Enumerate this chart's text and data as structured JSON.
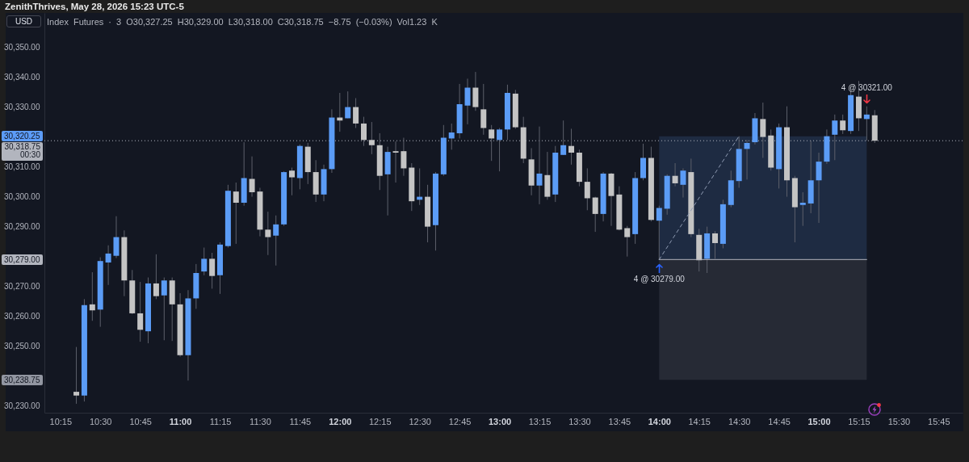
{
  "chart_data": {
    "type": "candlestick",
    "title": "ZenithThrives, May 28, 2026 15:23 UTC-5",
    "subtitle": "Index Futures · 3 O30,327.25 H30,329.00 L30,318.00 C30,318.75 −8.75 (−0.03%) Vol1.23 K",
    "ylabel": "USD",
    "x": [
      "2026-05-28T10:21",
      "2026-05-28T10:24",
      "2026-05-28T10:27",
      "2026-05-28T10:30",
      "2026-05-28T10:33",
      "2026-05-28T10:36",
      "2026-05-28T10:39",
      "2026-05-28T10:42",
      "2026-05-28T10:45",
      "2026-05-28T10:48",
      "2026-05-28T10:51",
      "2026-05-28T10:54",
      "2026-05-28T10:57",
      "2026-05-28T11:00",
      "2026-05-28T11:03",
      "2026-05-28T11:06",
      "2026-05-28T11:09",
      "2026-05-28T11:12",
      "2026-05-28T11:15",
      "2026-05-28T11:18",
      "2026-05-28T11:21",
      "2026-05-28T11:24",
      "2026-05-28T11:27",
      "2026-05-28T11:30",
      "2026-05-28T11:33",
      "2026-05-28T11:36",
      "2026-05-28T11:39",
      "2026-05-28T11:42",
      "2026-05-28T11:45",
      "2026-05-28T11:48",
      "2026-05-28T11:51",
      "2026-05-28T11:54",
      "2026-05-28T11:57",
      "2026-05-28T12:00",
      "2026-05-28T12:03",
      "2026-05-28T12:06",
      "2026-05-28T12:09",
      "2026-05-28T12:12",
      "2026-05-28T12:15",
      "2026-05-28T12:18",
      "2026-05-28T12:21",
      "2026-05-28T12:24",
      "2026-05-28T12:27",
      "2026-05-28T12:30",
      "2026-05-28T12:33",
      "2026-05-28T12:36",
      "2026-05-28T12:39",
      "2026-05-28T12:42",
      "2026-05-28T12:45",
      "2026-05-28T12:48",
      "2026-05-28T12:51",
      "2026-05-28T12:54",
      "2026-05-28T12:57",
      "2026-05-28T13:00",
      "2026-05-28T13:03",
      "2026-05-28T13:06",
      "2026-05-28T13:09",
      "2026-05-28T13:12",
      "2026-05-28T13:15",
      "2026-05-28T13:18",
      "2026-05-28T13:21",
      "2026-05-28T13:24",
      "2026-05-28T13:27",
      "2026-05-28T13:30",
      "2026-05-28T13:33",
      "2026-05-28T13:36",
      "2026-05-28T13:39",
      "2026-05-28T13:42",
      "2026-05-28T13:45",
      "2026-05-28T13:48",
      "2026-05-28T13:51",
      "2026-05-28T13:54",
      "2026-05-28T13:57",
      "2026-05-28T14:00",
      "2026-05-28T14:03",
      "2026-05-28T14:06",
      "2026-05-28T14:09",
      "2026-05-28T14:12",
      "2026-05-28T14:15",
      "2026-05-28T14:18",
      "2026-05-28T14:21",
      "2026-05-28T14:24",
      "2026-05-28T14:27",
      "2026-05-28T14:30",
      "2026-05-28T14:33",
      "2026-05-28T14:36",
      "2026-05-28T14:39",
      "2026-05-28T14:42",
      "2026-05-28T14:45",
      "2026-05-28T14:48",
      "2026-05-28T14:51",
      "2026-05-28T14:54",
      "2026-05-28T14:57",
      "2026-05-28T15:00",
      "2026-05-28T15:03",
      "2026-05-28T15:06",
      "2026-05-28T15:09",
      "2026-05-28T15:12",
      "2026-05-28T15:15",
      "2026-05-28T15:18",
      "2026-05-28T15:21"
    ],
    "ohlc": [
      [
        30234.75,
        30249.75,
        30230.75,
        30233.5
      ],
      [
        30233.5,
        30265.75,
        30231.5,
        30263.75
      ],
      [
        30264,
        30274.75,
        30258.5,
        30262
      ],
      [
        30262.25,
        30279.75,
        30256.5,
        30278.5
      ],
      [
        30278,
        30283.75,
        30270.5,
        30281
      ],
      [
        30280.25,
        30293.5,
        30279.5,
        30286.5
      ],
      [
        30286.5,
        30288.75,
        30266.75,
        30272
      ],
      [
        30272,
        30275.5,
        30260.75,
        30261
      ],
      [
        30261,
        30271.5,
        30251.5,
        30255.5
      ],
      [
        30255,
        30273,
        30251,
        30271
      ],
      [
        30271,
        30280.75,
        30265.75,
        30266.75
      ],
      [
        30267,
        30273,
        30252,
        30272
      ],
      [
        30272,
        30273,
        30251.75,
        30264
      ],
      [
        30264,
        30267.75,
        30246.5,
        30247
      ],
      [
        30247,
        30268.75,
        30238.5,
        30266
      ],
      [
        30266,
        30277.5,
        30262.5,
        30274.5
      ],
      [
        30275,
        30283,
        30273.75,
        30279.25
      ],
      [
        30279.25,
        30281.25,
        30269.25,
        30273.5
      ],
      [
        30273.75,
        30284.75,
        30267.5,
        30284
      ],
      [
        30283.5,
        30304,
        30283,
        30302
      ],
      [
        30301.75,
        30304.75,
        30284.25,
        30298
      ],
      [
        30298,
        30318.25,
        30297,
        30306.25
      ],
      [
        30306,
        30313.5,
        30300,
        30301.5
      ],
      [
        30301.75,
        30303,
        30286.75,
        30289
      ],
      [
        30289,
        30295,
        30280.5,
        30286.5
      ],
      [
        30287,
        30293.75,
        30277,
        30290.75
      ],
      [
        30290.75,
        30308.5,
        30290.25,
        30308.25
      ],
      [
        30308.75,
        30309.75,
        30300.5,
        30306.5
      ],
      [
        30306.25,
        30317.5,
        30302.5,
        30317
      ],
      [
        30316.75,
        30318,
        30304.25,
        30308.25
      ],
      [
        30308.25,
        30312.25,
        30298.25,
        30300.75
      ],
      [
        30300.75,
        30310.75,
        30298.5,
        30309.25
      ],
      [
        30309.25,
        30329.25,
        30308,
        30326.5
      ],
      [
        30326.5,
        30334.75,
        30321.75,
        30325.5
      ],
      [
        30326.25,
        30335.25,
        30326.25,
        30330
      ],
      [
        30330,
        30333,
        30323,
        30324.5
      ],
      [
        30324.5,
        30326.75,
        30317,
        30319
      ],
      [
        30319,
        30325,
        30314.25,
        30317.25
      ],
      [
        30317.25,
        30321.25,
        30302.25,
        30307
      ],
      [
        30307.5,
        30316.75,
        30293.75,
        30315
      ],
      [
        30315.25,
        30318.5,
        30304.75,
        30314.75
      ],
      [
        30315.25,
        30319.75,
        30307,
        30309.5
      ],
      [
        30309.75,
        30311.25,
        30295.25,
        30298.5
      ],
      [
        30299,
        30309.5,
        30297.25,
        30300
      ],
      [
        30300,
        30304,
        30284.75,
        30290
      ],
      [
        30290.5,
        30308.25,
        30282,
        30307.75
      ],
      [
        30307.5,
        30324,
        30307,
        30319.75
      ],
      [
        30319.5,
        30324.5,
        30315.75,
        30321.5
      ],
      [
        30321.25,
        30337.75,
        30319.5,
        30331
      ],
      [
        30330.5,
        30339.5,
        30324.25,
        30336.5
      ],
      [
        30336.5,
        30341.75,
        30328.75,
        30330
      ],
      [
        30329.25,
        30337.75,
        30320.75,
        30323
      ],
      [
        30322.5,
        30324,
        30312,
        30319.5
      ],
      [
        30319,
        30323,
        30308.5,
        30322.5
      ],
      [
        30322.5,
        30337.5,
        30319,
        30334.75
      ],
      [
        30334.5,
        30335.75,
        30322.75,
        30323.25
      ],
      [
        30323.25,
        30326.75,
        30311.25,
        30312.75
      ],
      [
        30312.5,
        30316.25,
        30300.5,
        30303.75
      ],
      [
        30303.75,
        30323.5,
        30297.5,
        30307.75
      ],
      [
        30307.25,
        30315,
        30299,
        30300
      ],
      [
        30300.75,
        30317,
        30298.25,
        30314.75
      ],
      [
        30314,
        30325.5,
        30314,
        30317.25
      ],
      [
        30317,
        30322.75,
        30310.75,
        30314.75
      ],
      [
        30314.75,
        30315.75,
        30303.5,
        30305
      ],
      [
        30305,
        30309.5,
        30295.5,
        30299.5
      ],
      [
        30299.75,
        30300,
        30288.25,
        30294.25
      ],
      [
        30294.25,
        30308.25,
        30291.75,
        30307.75
      ],
      [
        30307.75,
        30308,
        30290.25,
        30300.25
      ],
      [
        30300.75,
        30303.5,
        30288.75,
        30289
      ],
      [
        30289.5,
        30290.25,
        30280,
        30286.5
      ],
      [
        30287.5,
        30308.25,
        30284.25,
        30306.25
      ],
      [
        30306.25,
        30317.75,
        30305.5,
        30313
      ],
      [
        30313,
        30316.75,
        30291.75,
        30292.25
      ],
      [
        30292,
        30297,
        30279,
        30296.25
      ],
      [
        30296,
        30307.5,
        30294,
        30307
      ],
      [
        30307,
        30311.25,
        30303.5,
        30304.5
      ],
      [
        30304,
        30309.5,
        30299.75,
        30308.75
      ],
      [
        30308.25,
        30312.75,
        30286.5,
        30287.5
      ],
      [
        30287.25,
        30289.25,
        30275,
        30278.75
      ],
      [
        30279.25,
        30290,
        30274.5,
        30287.75
      ],
      [
        30287.75,
        30288.5,
        30279.25,
        30284.5
      ],
      [
        30284.25,
        30299,
        30282.75,
        30297.5
      ],
      [
        30297.25,
        30308.75,
        30296.5,
        30305.5
      ],
      [
        30305.25,
        30320.25,
        30303,
        30316
      ],
      [
        30316,
        30319,
        30305.75,
        30318
      ],
      [
        30318.25,
        30328,
        30317.5,
        30326.25
      ],
      [
        30326,
        30331.5,
        30313,
        30320
      ],
      [
        30320.5,
        30322.5,
        30308.75,
        30309.75
      ],
      [
        30309.25,
        30324.5,
        30302.75,
        30323.25
      ],
      [
        30323.25,
        30330.25,
        30300,
        30305.5
      ],
      [
        30306.25,
        30307,
        30284.75,
        30296.5
      ],
      [
        30297.25,
        30301.5,
        30290.25,
        30298
      ],
      [
        30297.75,
        30318.75,
        30294.5,
        30305.5
      ],
      [
        30305.5,
        30314.75,
        30291.25,
        30311.75
      ],
      [
        30311.75,
        30322.5,
        30311,
        30320.25
      ],
      [
        30320.75,
        30327.5,
        30312.25,
        30325.5
      ],
      [
        30325.5,
        30327.5,
        30321,
        30322.25
      ],
      [
        30322,
        30335.5,
        30321,
        30334
      ],
      [
        30333.5,
        30338.75,
        30322,
        30326.25
      ],
      [
        30326,
        30330.25,
        30318.75,
        30327.5
      ],
      [
        30327.25,
        30329,
        30318,
        30318.75
      ]
    ],
    "colors": [
      "#c4c4c4",
      "#5b9cf6",
      "#c4c4c4",
      "#5b9cf6",
      "#5b9cf6",
      "#5b9cf6",
      "#c4c4c4",
      "#c4c4c4",
      "#c4c4c4",
      "#5b9cf6",
      "#c4c4c4",
      "#5b9cf6",
      "#c4c4c4",
      "#c4c4c4",
      "#5b9cf6",
      "#5b9cf6",
      "#5b9cf6",
      "#c4c4c4",
      "#5b9cf6",
      "#5b9cf6",
      "#c4c4c4",
      "#5b9cf6",
      "#c4c4c4",
      "#c4c4c4",
      "#c4c4c4",
      "#5b9cf6",
      "#5b9cf6",
      "#c4c4c4",
      "#5b9cf6",
      "#c4c4c4",
      "#c4c4c4",
      "#5b9cf6",
      "#5b9cf6",
      "#c4c4c4",
      "#5b9cf6",
      "#c4c4c4",
      "#c4c4c4",
      "#c4c4c4",
      "#c4c4c4",
      "#5b9cf6",
      "#c4c4c4",
      "#c4c4c4",
      "#c4c4c4",
      "#5b9cf6",
      "#c4c4c4",
      "#5b9cf6",
      "#5b9cf6",
      "#5b9cf6",
      "#5b9cf6",
      "#5b9cf6",
      "#c4c4c4",
      "#c4c4c4",
      "#c4c4c4",
      "#5b9cf6",
      "#5b9cf6",
      "#c4c4c4",
      "#c4c4c4",
      "#c4c4c4",
      "#5b9cf6",
      "#c4c4c4",
      "#5b9cf6",
      "#5b9cf6",
      "#c4c4c4",
      "#c4c4c4",
      "#c4c4c4",
      "#c4c4c4",
      "#5b9cf6",
      "#c4c4c4",
      "#c4c4c4",
      "#c4c4c4",
      "#5b9cf6",
      "#5b9cf6",
      "#c4c4c4",
      "#5b9cf6",
      "#5b9cf6",
      "#c4c4c4",
      "#5b9cf6",
      "#c4c4c4",
      "#c4c4c4",
      "#5b9cf6",
      "#c4c4c4",
      "#5b9cf6",
      "#5b9cf6",
      "#5b9cf6",
      "#5b9cf6",
      "#5b9cf6",
      "#c4c4c4",
      "#c4c4c4",
      "#5b9cf6",
      "#c4c4c4",
      "#c4c4c4",
      "#5b9cf6",
      "#5b9cf6",
      "#5b9cf6",
      "#5b9cf6",
      "#5b9cf6",
      "#c4c4c4",
      "#5b9cf6",
      "#c4c4c4",
      "#5b9cf6",
      "#c4c4c4"
    ],
    "xlim": [
      "2026-05-28T10:09",
      "2026-05-28T15:54"
    ],
    "xticks": [
      {
        "value": "2026-05-28T10:15",
        "label": "10:15"
      },
      {
        "value": "2026-05-28T10:30",
        "label": "10:30"
      },
      {
        "value": "2026-05-28T10:45",
        "label": "10:45"
      },
      {
        "value": "2026-05-28T11:00",
        "label": "11:00"
      },
      {
        "value": "2026-05-28T11:15",
        "label": "11:15"
      },
      {
        "value": "2026-05-28T11:30",
        "label": "11:30"
      },
      {
        "value": "2026-05-28T11:45",
        "label": "11:45"
      },
      {
        "value": "2026-05-28T12:00",
        "label": "12:00"
      },
      {
        "value": "2026-05-28T12:15",
        "label": "12:15"
      },
      {
        "value": "2026-05-28T12:30",
        "label": "12:30"
      },
      {
        "value": "2026-05-28T12:45",
        "label": "12:45"
      },
      {
        "value": "2026-05-28T13:00",
        "label": "13:00"
      },
      {
        "value": "2026-05-28T13:15",
        "label": "13:15"
      },
      {
        "value": "2026-05-28T13:30",
        "label": "13:30"
      },
      {
        "value": "2026-05-28T13:45",
        "label": "13:45"
      },
      {
        "value": "2026-05-28T14:00",
        "label": "14:00"
      },
      {
        "value": "2026-05-28T14:15",
        "label": "14:15"
      },
      {
        "value": "2026-05-28T14:30",
        "label": "14:30"
      },
      {
        "value": "2026-05-28T14:45",
        "label": "14:45"
      },
      {
        "value": "2026-05-28T15:00",
        "label": "15:00"
      },
      {
        "value": "2026-05-28T15:15",
        "label": "15:15"
      },
      {
        "value": "2026-05-28T15:30",
        "label": "15:30"
      },
      {
        "value": "2026-05-28T15:45",
        "label": "15:45"
      }
    ],
    "ylim": [
      30227.75,
      30361.5
    ],
    "yticks": [
      {
        "value": 30230,
        "label": "30,230.00"
      },
      {
        "value": 30238.75,
        "label": "30,238.75"
      },
      {
        "value": 30250,
        "label": "30,250.00"
      },
      {
        "value": 30260,
        "label": "30,260.00"
      },
      {
        "value": 30270,
        "label": "30,270.00"
      },
      {
        "value": 30279,
        "label": "30,279.00"
      },
      {
        "value": 30290,
        "label": "30,290.00"
      },
      {
        "value": 30300,
        "label": "30,300.00"
      },
      {
        "value": 30310,
        "label": "30,310.00"
      },
      {
        "value": 30320.25,
        "label": "30,320.25"
      },
      {
        "value": 30330,
        "label": "30,330.00"
      },
      {
        "value": 30340,
        "label": "30,340.00"
      },
      {
        "value": 30350,
        "label": "30,350.00"
      }
    ],
    "series": [
      {
        "type": "line",
        "x": [
          "2026-05-28T14:00",
          "2026-05-28T15:18"
        ],
        "values": [
          30279,
          30279
        ],
        "color": "#b2b5be"
      },
      {
        "type": "line",
        "x": [
          "2026-05-28T14:00",
          "2026-05-28T14:30"
        ],
        "values": [
          30279,
          30320.25
        ],
        "color": "#8f9bb3",
        "line_style": "dashed"
      }
    ],
    "ref_lines": [
      {
        "axis": "y",
        "value": 30318.75,
        "label": "30,318.75\n00:30",
        "color": "#b2b5be",
        "line_style": "dotted"
      }
    ],
    "bands": [
      {
        "axis": "y",
        "from": 30279,
        "to": 30320.25,
        "color": "#1e2b42"
      },
      {
        "axis": "y",
        "from": 30238.75,
        "to": 30279,
        "color": "#262a35"
      }
    ],
    "annotations": [
      {
        "text": "4 @ 30279.00",
        "x": "2026-05-28T14:00",
        "y": 30279
      },
      {
        "text": "4 @ 30321.00",
        "x": "2026-05-28T15:18",
        "y": 30330.25
      }
    ]
  }
}
